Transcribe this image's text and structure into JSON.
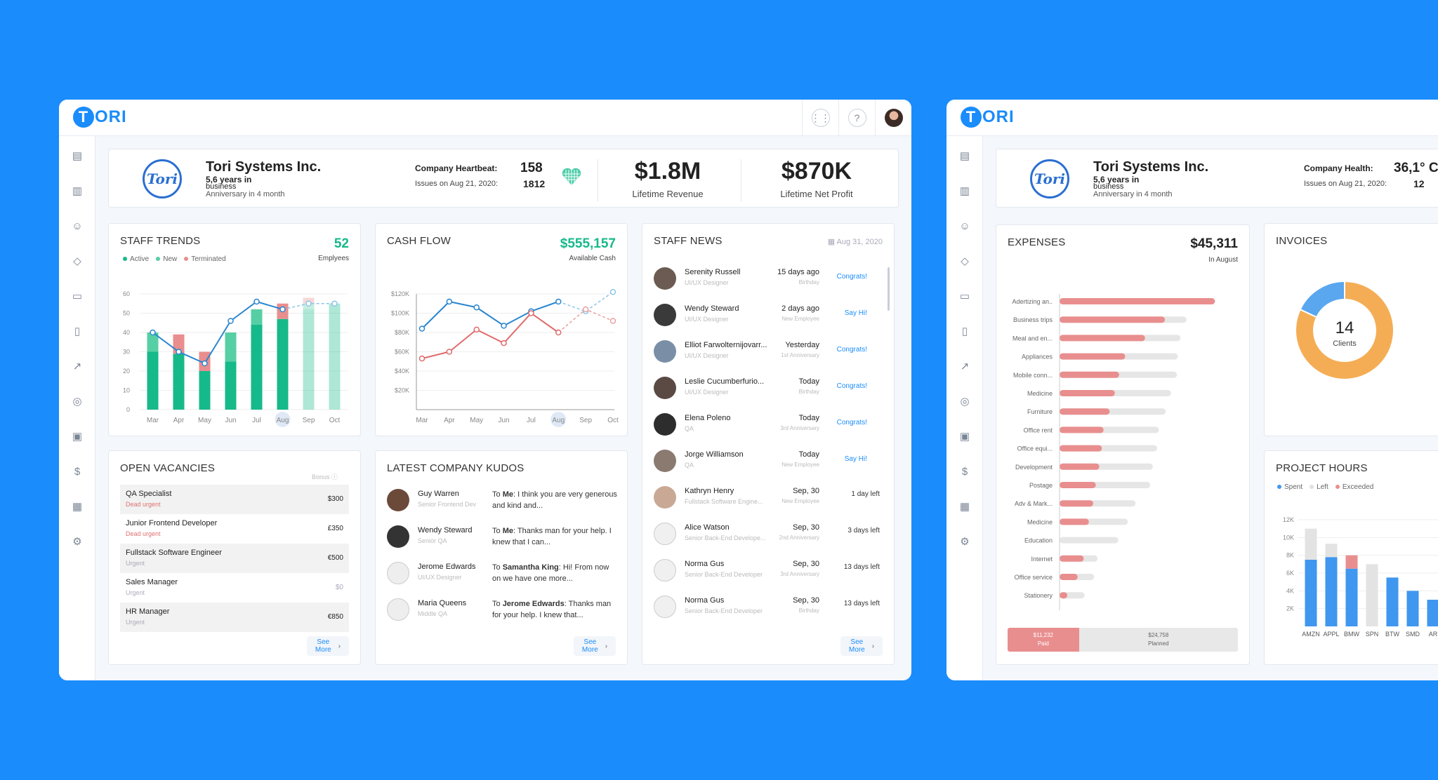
{
  "brand": {
    "logo_t": "T",
    "logo_rest": "ORI"
  },
  "company": {
    "name": "Tori Systems Inc.",
    "years": "5,6 years in",
    "years_after": "business",
    "anniversary": "Anniversary in 4 month",
    "logo_text": "Tori"
  },
  "heartbeat": {
    "label": "Company Heartbeat:",
    "value": "158",
    "issues_label": "Issues on Aug 21, 2020:",
    "issues_value": "1812"
  },
  "revenue": {
    "value": "$1.8M",
    "label": "Lifetime Revenue"
  },
  "profit": {
    "value": "$870K",
    "label": "Lifetime Net Profit"
  },
  "staff_trends": {
    "title": "STAFF TRENDS",
    "count": "52",
    "count_label": "Emplyees",
    "legend": [
      "Active",
      "New",
      "Terminated"
    ],
    "colors": {
      "active": "#16b98a",
      "new": "#57cfa4",
      "terminated": "#e98e8e",
      "line": "#2a86cf"
    }
  },
  "cash_flow": {
    "title": "CASH FLOW",
    "amount": "$555,157",
    "amount_label": "Available Cash"
  },
  "staff_news": {
    "title": "STAFF  NEWS",
    "date": "Aug 31, 2020",
    "items": [
      {
        "name": "Serenity Russell",
        "role": "UI/UX Designer",
        "when": "15 days ago",
        "event": "Birthday",
        "action": "Congrats!"
      },
      {
        "name": "Wendy Steward",
        "role": "UI/UX Designer",
        "when": "2 days ago",
        "event": "New Employee",
        "action": "Say Hi!"
      },
      {
        "name": "Elliot Farwolternijovarr...",
        "role": "UI/UX Designer",
        "when": "Yesterday",
        "event": "1st Anniversary",
        "action": "Congrats!"
      },
      {
        "name": "Leslie Cucumberfurio...",
        "role": "UI/UX Designer",
        "when": "Today",
        "event": "Birthday",
        "action": "Congrats!"
      },
      {
        "name": "Elena Poleno",
        "role": "QA",
        "when": "Today",
        "event": "3rd Anniversary",
        "action": "Congrats!"
      },
      {
        "name": "Jorge Williamson",
        "role": "QA",
        "when": "Today",
        "event": "New Employee",
        "action": "Say Hi!"
      },
      {
        "name": "Kathryn Henry",
        "role": "Fullstack Software Engine...",
        "when": "Sep, 30",
        "event": "New Employee",
        "action": "1 day left"
      },
      {
        "name": "Alice Watson",
        "role": "Senior Back-End Develope...",
        "when": "Sep, 30",
        "event": "2nd Anniversary",
        "action": "3 days left"
      },
      {
        "name": "Norma Gus",
        "role": "Senior Back-End Developer",
        "when": "Sep, 30",
        "event": "3rd Anniversary",
        "action": "13 days left"
      },
      {
        "name": "Norma Gus",
        "role": "Senior Back-End Developer",
        "when": "Sep, 30",
        "event": "Birthday",
        "action": "13 days left"
      }
    ],
    "see_more": [
      "See",
      "More"
    ]
  },
  "vacancies": {
    "title": "OPEN VACANCIES",
    "bonus_label": "Bonus",
    "items": [
      {
        "title": "QA Specialist",
        "status": "Dead urgent",
        "bonus": "$300"
      },
      {
        "title": "Junior Frontend Developer",
        "status": "Dead urgent",
        "bonus": "£350"
      },
      {
        "title": "Fullstack Software Engineer",
        "status": "Urgent",
        "bonus": "€500"
      },
      {
        "title": "Sales Manager",
        "status": "Urgent",
        "bonus": "$0"
      },
      {
        "title": "HR Manager",
        "status": "Urgent",
        "bonus": "€850"
      }
    ],
    "see_more": [
      "See",
      "More"
    ]
  },
  "kudos": {
    "title": "LATEST COMPANY KUDOS",
    "items": [
      {
        "name": "Guy Warren",
        "role": "Senior Frontend Dev",
        "to": "Me",
        "text": ": I think you are very generous and kind and..."
      },
      {
        "name": "Wendy Steward",
        "role": "Senior QA",
        "to": "Me",
        "text": ": Thanks man for your help. I knew that I can..."
      },
      {
        "name": "Jerome Edwards",
        "role": "UI/UX Designer",
        "to": "Samantha King",
        "text": ": Hi! From now on we have one more..."
      },
      {
        "name": "Maria Queens",
        "role": "Middle QA",
        "to": "Jerome Edwards",
        "text": ": Thanks man for your help. I knew that..."
      }
    ],
    "to_prefix": "To ",
    "see_more": [
      "See",
      "More"
    ]
  },
  "company2": {
    "health_label": "Company Health:",
    "health_value": "36,1° C",
    "issues_label": "Issues on Aug 21, 2020:",
    "issues_value": "12"
  },
  "expenses": {
    "title": "EXPENSES",
    "amount": "$45,311",
    "amount_label": "In August",
    "paid": {
      "value": "$11,232",
      "label": "Paid"
    },
    "planned": {
      "value": "$24,758",
      "label": "Planned"
    }
  },
  "invoices": {
    "title": "INVOICES",
    "count": "14",
    "count_label": "Clients"
  },
  "project_hours": {
    "title": "PROJECT HOURS",
    "legend": [
      "Spent",
      "Left",
      "Exceeded"
    ]
  },
  "chart_data": [
    {
      "type": "bar",
      "title": "STAFF TRENDS",
      "categories": [
        "Mar",
        "Apr",
        "May",
        "Jun",
        "Jul",
        "Aug",
        "Sep",
        "Oct"
      ],
      "ylim": [
        0,
        60
      ],
      "yticks": [
        0,
        10,
        20,
        30,
        40,
        50,
        60
      ],
      "series": [
        {
          "name": "Active",
          "values": [
            30,
            29,
            20,
            25,
            44,
            47,
            52,
            55
          ]
        },
        {
          "name": "New",
          "values": [
            10,
            0,
            0,
            15,
            8,
            0,
            3,
            0
          ]
        },
        {
          "name": "Terminated",
          "values": [
            0,
            10,
            10,
            0,
            0,
            8,
            3,
            0
          ]
        }
      ],
      "line": [
        40,
        30,
        24,
        46,
        56,
        52,
        55,
        55
      ],
      "forecast_from": "Aug"
    },
    {
      "type": "line",
      "title": "CASH FLOW",
      "categories": [
        "Mar",
        "Apr",
        "May",
        "Jun",
        "Jul",
        "Aug",
        "Sep",
        "Oct"
      ],
      "ylim": [
        0,
        120
      ],
      "yticks": [
        "$20K",
        "$40K",
        "$60K",
        "$80K",
        "$100K",
        "$120K"
      ],
      "series": [
        {
          "values": [
            84,
            112,
            106,
            87,
            102,
            112,
            102,
            122
          ]
        },
        {
          "values": [
            53,
            60,
            83,
            69,
            100,
            80,
            104,
            92
          ]
        }
      ],
      "forecast_from": "Aug"
    },
    {
      "type": "bar",
      "title": "EXPENSES",
      "categories": [
        "Adertizing an..",
        "Business trips",
        "Meal and en...",
        "Appliances",
        "Mobile conn...",
        "Medicine",
        "Furniture",
        "Office rent",
        "Office equi...",
        "Development",
        "Postage",
        "Adv & Mark...",
        "Medicine",
        "Education",
        "Internet",
        "Office service",
        "Stationery"
      ],
      "xticks": [
        "0",
        "$5K",
        "$10K",
        "$15K",
        "$20K"
      ],
      "xlim": [
        0,
        20
      ],
      "series": [
        {
          "name": "Spent",
          "values": [
            18,
            12.2,
            9.9,
            7.6,
            6.9,
            6.4,
            5.8,
            5.1,
            4.9,
            4.6,
            4.2,
            3.9,
            3.4,
            0,
            2.8,
            2.1,
            0.9
          ]
        },
        {
          "name": "Planned",
          "values": [
            18,
            14.7,
            14,
            13.7,
            13.6,
            12.9,
            12.3,
            11.5,
            11.3,
            10.8,
            10.5,
            8.8,
            7.9,
            6.8,
            4.4,
            4,
            2.9
          ]
        }
      ]
    },
    {
      "type": "pie",
      "title": "INVOICES",
      "values": [
        82,
        18
      ],
      "colors": [
        "#f5ad55",
        "#5aa6ef"
      ]
    },
    {
      "type": "bar",
      "title": "PROJECT HOURS",
      "categories": [
        "AMZN",
        "APPL",
        "BMW",
        "SPN",
        "BTW",
        "SMD",
        "AR"
      ],
      "yticks": [
        "2K",
        "4K",
        "6K",
        "8K",
        "10K",
        "12K"
      ],
      "ylim": [
        0,
        12
      ],
      "series": [
        {
          "name": "Spent",
          "values": [
            7.5,
            7.8,
            6.5,
            0,
            5.5,
            4,
            3
          ]
        },
        {
          "name": "Left",
          "values": [
            3.5,
            1.5,
            0,
            7,
            0,
            0,
            0
          ]
        },
        {
          "name": "Exceeded",
          "values": [
            0,
            0,
            1.5,
            0,
            0,
            0,
            0
          ]
        }
      ]
    }
  ]
}
